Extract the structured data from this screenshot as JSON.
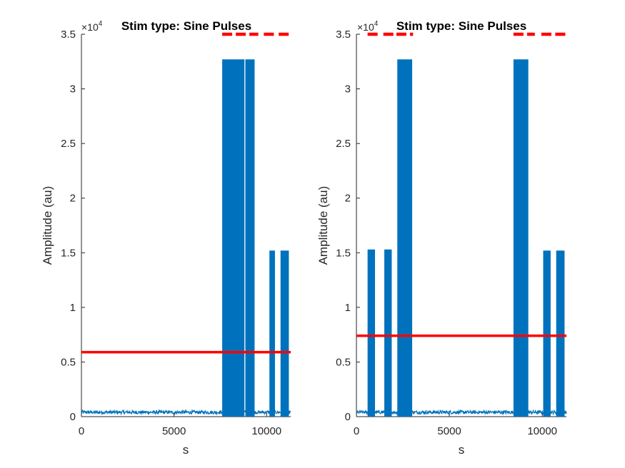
{
  "figure": {
    "background": "#ffffff",
    "axis_color": "#262626"
  },
  "chart_data": [
    {
      "type": "line",
      "title": "Stim type: Sine Pulses",
      "xlabel": "s",
      "ylabel": "Amplitude (au)",
      "xlim": [
        0,
        11300
      ],
      "ylim": [
        0,
        3.5
      ],
      "y_exponent_label": "×10",
      "y_exponent": "4",
      "xticks": [
        0,
        5000,
        10000
      ],
      "xtick_labels": [
        "0",
        "5000",
        "10000"
      ],
      "yticks": [
        0,
        0.5,
        1,
        1.5,
        2,
        2.5,
        3,
        3.5
      ],
      "ytick_labels": [
        "0",
        "0.5",
        "1",
        "1.5",
        "2",
        "2.5",
        "3",
        "3.5"
      ],
      "series_color": "#0072BD",
      "threshold_color": "#FF0000",
      "baseline_level": 0.04,
      "bursts": [
        {
          "x0": 7600,
          "x1": 8800,
          "level": 3.27
        },
        {
          "x0": 8850,
          "x1": 9350,
          "level": 3.27
        },
        {
          "x0": 10150,
          "x1": 10450,
          "level": 1.52
        },
        {
          "x0": 10750,
          "x1": 11200,
          "level": 1.52
        }
      ],
      "threshold": 0.59,
      "stim_markers_y": 3.5,
      "stim_markers": [
        {
          "x0": 7600,
          "x1": 9550
        },
        {
          "x0": 9850,
          "x1": 10450
        },
        {
          "x0": 10650,
          "x1": 11300
        }
      ]
    },
    {
      "type": "line",
      "title": "Stim type: Sine Pulses",
      "xlabel": "s",
      "ylabel": "Amplitude (au)",
      "xlim": [
        0,
        11300
      ],
      "ylim": [
        0,
        3.5
      ],
      "y_exponent_label": "×10",
      "y_exponent": "4",
      "xticks": [
        0,
        5000,
        10000
      ],
      "xtick_labels": [
        "0",
        "5000",
        "10000"
      ],
      "yticks": [
        0,
        0.5,
        1,
        1.5,
        2,
        2.5,
        3,
        3.5
      ],
      "ytick_labels": [
        "0",
        "0.5",
        "1",
        "1.5",
        "2",
        "2.5",
        "3",
        "3.5"
      ],
      "series_color": "#0072BD",
      "threshold_color": "#FF0000",
      "baseline_level": 0.04,
      "bursts": [
        {
          "x0": 600,
          "x1": 1000,
          "level": 1.53
        },
        {
          "x0": 1500,
          "x1": 1900,
          "level": 1.53
        },
        {
          "x0": 2200,
          "x1": 3000,
          "level": 3.27
        },
        {
          "x0": 8450,
          "x1": 9250,
          "level": 3.27
        },
        {
          "x0": 10050,
          "x1": 10450,
          "level": 1.52
        },
        {
          "x0": 10750,
          "x1": 11200,
          "level": 1.52
        }
      ],
      "threshold": 0.74,
      "stim_markers_y": 3.5,
      "stim_markers": [
        {
          "x0": 600,
          "x1": 1150
        },
        {
          "x0": 1450,
          "x1": 2000
        },
        {
          "x0": 2150,
          "x1": 3050
        },
        {
          "x0": 8450,
          "x1": 9600
        },
        {
          "x0": 9950,
          "x1": 10500
        },
        {
          "x0": 10700,
          "x1": 11300
        }
      ]
    }
  ]
}
